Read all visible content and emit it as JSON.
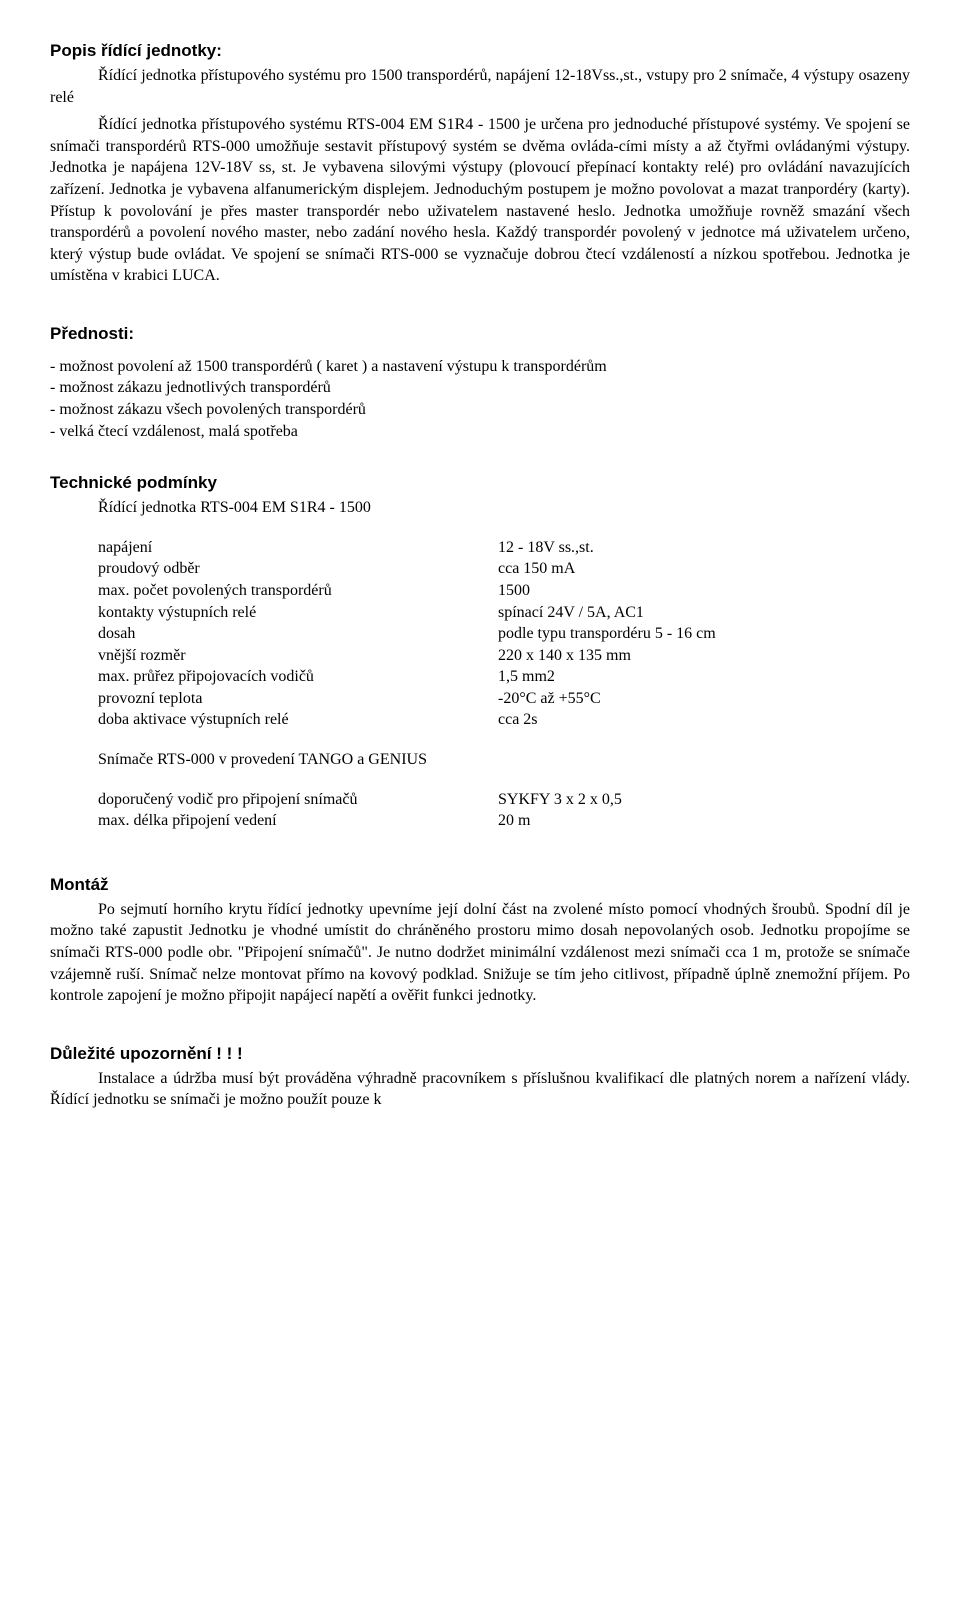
{
  "s1": {
    "heading": "Popis řídící jednotky:",
    "line1": "Řídící jednotka přístupového systému pro 1500 transpordérů, napájení 12-18Vss.,st., vstupy pro 2 snímače, 4 výstupy osazeny relé",
    "line2": "Řídící jednotka přístupového systému RTS-004 EM S1R4 - 1500 je určena pro jednoduché přístupové systémy. Ve spojení se snímači  transpordérů RTS-000 umožňuje sestavit přístupový systém se dvěma ovláda-cími místy a až čtyřmi ovládanými výstupy. Jednotka je napájena 12V-18V ss, st. Je vybavena silovými výstupy (plovoucí přepínací kontakty relé) pro ovládání navazujících zařízení. Jednotka je vybavena alfanumerickým displejem. Jednoduchým postupem je možno povolovat a mazat  tranpordéry (karty). Přístup k povolování je přes master transpordér nebo uživatelem nastavené heslo. Jednotka umožňuje rovněž smazání všech transpordérů a povolení nového master, nebo zadání nového hesla. Každý transpordér povolený v jednotce má uživatelem určeno, který výstup bude ovládat. Ve spojení se snímači RTS-000 se vyznačuje dobrou čtecí vzdáleností a nízkou spotřebou. Jednotka je umístěna v krabici LUCA."
  },
  "s2": {
    "heading": "Přednosti:",
    "b1": "- možnost povolení až 1500 transpordérů ( karet ) a nastavení výstupu k transpordérům",
    "b2": "- možnost zákazu jednotlivých transpordérů",
    "b3": "- možnost zákazu všech povolených transpordérů",
    "b4": "- velká čtecí vzdálenost, malá spotřeba"
  },
  "s3": {
    "heading": "Technické podmínky",
    "subtitle": "Řídící jednotka RTS-004 EM S1R4 - 1500",
    "rows1": [
      {
        "label": "napájení",
        "value": "12 - 18V ss.,st."
      },
      {
        "label": "proudový odběr",
        "value": "cca 150 mA"
      },
      {
        "label": "max. počet povolených transpordérů",
        "value": "1500"
      },
      {
        "label": "kontakty výstupních relé",
        "value": "spínací 24V / 5A, AC1"
      },
      {
        "label": "dosah",
        "value": "podle typu transpordéru 5 - 16 cm"
      },
      {
        "label": "vnější rozměr",
        "value": "220 x 140 x 135 mm"
      },
      {
        "label": "max. průřez připojovacích vodičů",
        "value": "1,5 mm2"
      },
      {
        "label": "provozní teplota",
        "value": "-20°C až +55°C"
      },
      {
        "label": "doba aktivace výstupních relé",
        "value": "cca 2s"
      }
    ],
    "mid": "Snímače RTS-000 v provedení TANGO a GENIUS",
    "rows2": [
      {
        "label": "doporučený vodič pro připojení snímačů",
        "value": "SYKFY 3 x 2 x 0,5"
      },
      {
        "label": "max. délka připojení vedení",
        "value": "20 m"
      }
    ]
  },
  "s4": {
    "heading": "Montáž",
    "body": "Po sejmutí horního krytu řídící jednotky upevníme její dolní část na zvolené místo pomocí vhodných šroubů. Spodní díl je možno také zapustit Jednotku je vhodné umístit do chráněného prostoru mimo dosah nepovolaných osob. Jednotku propojíme se snímači RTS-000 podle obr. \"Připojení snímačů\". Je nutno dodržet minimální vzdálenost mezi snímači cca 1 m, protože se snímače vzájemně ruší. Snímač nelze montovat přímo na kovový podklad. Snižuje se tím jeho citlivost, případně úplně znemožní příjem. Po kontrole zapojení je možno připojit napájecí napětí a ověřit funkci jednotky."
  },
  "s5": {
    "heading": "Důležité upozornění ! ! !",
    "body": "Instalace a údržba musí být prováděna výhradně pracovníkem s příslušnou kvalifikací dle platných norem a nařízení vlády. Řídící jednotku se snímači je možno použít pouze k"
  }
}
